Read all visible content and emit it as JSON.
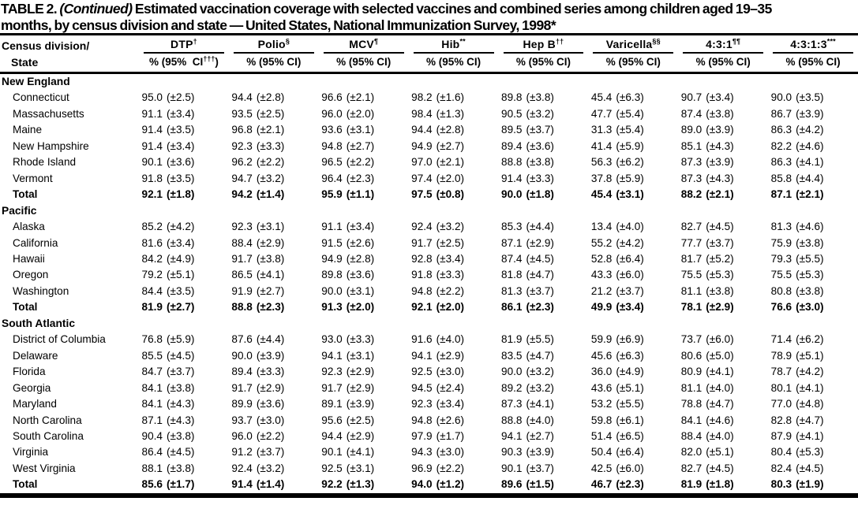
{
  "document": {
    "title_prefix": "TABLE 2.",
    "title_continued": "(Continued)",
    "title_line1_rest": "Estimated vaccination coverage with selected vaccines and combined series among children aged 19–35",
    "title_line2": "months, by census division and state — United States, National Immunization Survey, 1998*"
  },
  "table": {
    "row_header": {
      "line1": "Census division/",
      "line2": "State"
    },
    "columns": [
      {
        "label": "DTP",
        "mark": "†",
        "sub_pre": "% (95%  CI",
        "sub_mark": "†††",
        "sub_post": ")"
      },
      {
        "label": "Polio",
        "mark": "§",
        "sub_pre": "% (95% CI)",
        "sub_mark": "",
        "sub_post": ""
      },
      {
        "label": "MCV",
        "mark": "¶",
        "sub_pre": "% (95% CI)",
        "sub_mark": "",
        "sub_post": ""
      },
      {
        "label": "Hib",
        "mark": "**",
        "sub_pre": "% (95% CI)",
        "sub_mark": "",
        "sub_post": ""
      },
      {
        "label": "Hep B",
        "mark": "††",
        "sub_pre": "% (95% CI)",
        "sub_mark": "",
        "sub_post": ""
      },
      {
        "label": "Varicella",
        "mark": "§§",
        "sub_pre": "% (95% CI)",
        "sub_mark": "",
        "sub_post": ""
      },
      {
        "label": "4:3:1",
        "mark": "¶¶",
        "sub_pre": "% (95% CI)",
        "sub_mark": "",
        "sub_post": ""
      },
      {
        "label": "4:3:1:3",
        "mark": "***",
        "sub_pre": "% (95% CI)",
        "sub_mark": "",
        "sub_post": ""
      }
    ],
    "sections": [
      {
        "name": "New England",
        "rows": [
          {
            "state": "Connecticut",
            "total": false,
            "cells": [
              "95.0 (±2.5)",
              "94.4 (±2.8)",
              "96.6 (±2.1)",
              "98.2 (±1.6)",
              "89.8 (±3.8)",
              "45.4 (±6.3)",
              "90.7 (±3.4)",
              "90.0 (±3.5)"
            ]
          },
          {
            "state": "Massachusetts",
            "total": false,
            "cells": [
              "91.1 (±3.4)",
              "93.5 (±2.5)",
              "96.0 (±2.0)",
              "98.4 (±1.3)",
              "90.5 (±3.2)",
              "47.7 (±5.4)",
              "87.4 (±3.8)",
              "86.7 (±3.9)"
            ]
          },
          {
            "state": "Maine",
            "total": false,
            "cells": [
              "91.4 (±3.5)",
              "96.8 (±2.1)",
              "93.6 (±3.1)",
              "94.4 (±2.8)",
              "89.5 (±3.7)",
              "31.3 (±5.4)",
              "89.0 (±3.9)",
              "86.3 (±4.2)"
            ]
          },
          {
            "state": "New Hampshire",
            "total": false,
            "cells": [
              "91.4 (±3.4)",
              "92.3 (±3.3)",
              "94.8 (±2.7)",
              "94.9 (±2.7)",
              "89.4 (±3.6)",
              "41.4 (±5.9)",
              "85.1 (±4.3)",
              "82.2 (±4.6)"
            ]
          },
          {
            "state": "Rhode Island",
            "total": false,
            "cells": [
              "90.1 (±3.6)",
              "96.2 (±2.2)",
              "96.5 (±2.2)",
              "97.0 (±2.1)",
              "88.8 (±3.8)",
              "56.3 (±6.2)",
              "87.3 (±3.9)",
              "86.3 (±4.1)"
            ]
          },
          {
            "state": "Vermont",
            "total": false,
            "cells": [
              "91.8 (±3.5)",
              "94.7 (±3.2)",
              "96.4 (±2.3)",
              "97.4 (±2.0)",
              "91.4 (±3.3)",
              "37.8 (±5.9)",
              "87.3 (±4.3)",
              "85.8 (±4.4)"
            ]
          },
          {
            "state": "Total",
            "total": true,
            "cells": [
              "92.1 (±1.8)",
              "94.2 (±1.4)",
              "95.9 (±1.1)",
              "97.5 (±0.8)",
              "90.0 (±1.8)",
              "45.4 (±3.1)",
              "88.2 (±2.1)",
              "87.1 (±2.1)"
            ]
          }
        ]
      },
      {
        "name": "Pacific",
        "rows": [
          {
            "state": "Alaska",
            "total": false,
            "cells": [
              "85.2 (±4.2)",
              "92.3 (±3.1)",
              "91.1 (±3.4)",
              "92.4 (±3.2)",
              "85.3 (±4.4)",
              "13.4 (±4.0)",
              "82.7 (±4.5)",
              "81.3 (±4.6)"
            ]
          },
          {
            "state": "California",
            "total": false,
            "cells": [
              "81.6 (±3.4)",
              "88.4 (±2.9)",
              "91.5 (±2.6)",
              "91.7 (±2.5)",
              "87.1 (±2.9)",
              "55.2 (±4.2)",
              "77.7 (±3.7)",
              "75.9 (±3.8)"
            ]
          },
          {
            "state": "Hawaii",
            "total": false,
            "cells": [
              "84.2 (±4.9)",
              "91.7 (±3.8)",
              "94.9 (±2.8)",
              "92.8 (±3.4)",
              "87.4 (±4.5)",
              "52.8 (±6.4)",
              "81.7 (±5.2)",
              "79.3 (±5.5)"
            ]
          },
          {
            "state": "Oregon",
            "total": false,
            "cells": [
              "79.2 (±5.1)",
              "86.5 (±4.1)",
              "89.8 (±3.6)",
              "91.8 (±3.3)",
              "81.8 (±4.7)",
              "43.3 (±6.0)",
              "75.5 (±5.3)",
              "75.5 (±5.3)"
            ]
          },
          {
            "state": "Washington",
            "total": false,
            "cells": [
              "84.4 (±3.5)",
              "91.9 (±2.7)",
              "90.0 (±3.1)",
              "94.8 (±2.2)",
              "81.3 (±3.7)",
              "21.2 (±3.7)",
              "81.1 (±3.8)",
              "80.8 (±3.8)"
            ]
          },
          {
            "state": "Total",
            "total": true,
            "cells": [
              "81.9 (±2.7)",
              "88.8 (±2.3)",
              "91.3 (±2.0)",
              "92.1 (±2.0)",
              "86.1 (±2.3)",
              "49.9 (±3.4)",
              "78.1 (±2.9)",
              "76.6 (±3.0)"
            ]
          }
        ]
      },
      {
        "name": "South Atlantic",
        "rows": [
          {
            "state": "District of Columbia",
            "total": false,
            "cells": [
              "76.8 (±5.9)",
              "87.6 (±4.4)",
              "93.0 (±3.3)",
              "91.6 (±4.0)",
              "81.9 (±5.5)",
              "59.9 (±6.9)",
              "73.7 (±6.0)",
              "71.4 (±6.2)"
            ]
          },
          {
            "state": "Delaware",
            "total": false,
            "cells": [
              "85.5 (±4.5)",
              "90.0 (±3.9)",
              "94.1 (±3.1)",
              "94.1 (±2.9)",
              "83.5 (±4.7)",
              "45.6 (±6.3)",
              "80.6 (±5.0)",
              "78.9 (±5.1)"
            ]
          },
          {
            "state": "Florida",
            "total": false,
            "cells": [
              "84.7 (±3.7)",
              "89.4 (±3.3)",
              "92.3 (±2.9)",
              "92.5 (±3.0)",
              "90.0 (±3.2)",
              "36.0 (±4.9)",
              "80.9 (±4.1)",
              "78.7 (±4.2)"
            ]
          },
          {
            "state": "Georgia",
            "total": false,
            "cells": [
              "84.1 (±3.8)",
              "91.7 (±2.9)",
              "91.7 (±2.9)",
              "94.5 (±2.4)",
              "89.2 (±3.2)",
              "43.6 (±5.1)",
              "81.1 (±4.0)",
              "80.1 (±4.1)"
            ]
          },
          {
            "state": "Maryland",
            "total": false,
            "cells": [
              "84.1 (±4.3)",
              "89.9 (±3.6)",
              "89.1 (±3.9)",
              "92.3 (±3.4)",
              "87.3 (±4.1)",
              "53.2 (±5.5)",
              "78.8 (±4.7)",
              "77.0 (±4.8)"
            ]
          },
          {
            "state": "North Carolina",
            "total": false,
            "cells": [
              "87.1 (±4.3)",
              "93.7 (±3.0)",
              "95.6 (±2.5)",
              "94.8 (±2.6)",
              "88.8 (±4.0)",
              "59.8 (±6.1)",
              "84.1 (±4.6)",
              "82.8 (±4.7)"
            ]
          },
          {
            "state": "South Carolina",
            "total": false,
            "cells": [
              "90.4 (±3.8)",
              "96.0 (±2.2)",
              "94.4 (±2.9)",
              "97.9 (±1.7)",
              "94.1 (±2.7)",
              "51.4 (±6.5)",
              "88.4 (±4.0)",
              "87.9 (±4.1)"
            ]
          },
          {
            "state": "Virginia",
            "total": false,
            "cells": [
              "86.4 (±4.5)",
              "91.2 (±3.7)",
              "90.1 (±4.1)",
              "94.3 (±3.0)",
              "90.3 (±3.9)",
              "50.4 (±6.4)",
              "82.0 (±5.1)",
              "80.4 (±5.3)"
            ]
          },
          {
            "state": "West Virginia",
            "total": false,
            "cells": [
              "88.1 (±3.8)",
              "92.4 (±3.2)",
              "92.5 (±3.1)",
              "96.9 (±2.2)",
              "90.1 (±3.7)",
              "42.5 (±6.0)",
              "82.7 (±4.5)",
              "82.4 (±4.5)"
            ]
          },
          {
            "state": "Total",
            "total": true,
            "cells": [
              "85.6 (±1.7)",
              "91.4 (±1.4)",
              "92.2 (±1.3)",
              "94.0 (±1.2)",
              "89.6 (±1.5)",
              "46.7 (±2.3)",
              "81.9 (±1.8)",
              "80.3 (±1.9)"
            ]
          }
        ]
      }
    ]
  }
}
